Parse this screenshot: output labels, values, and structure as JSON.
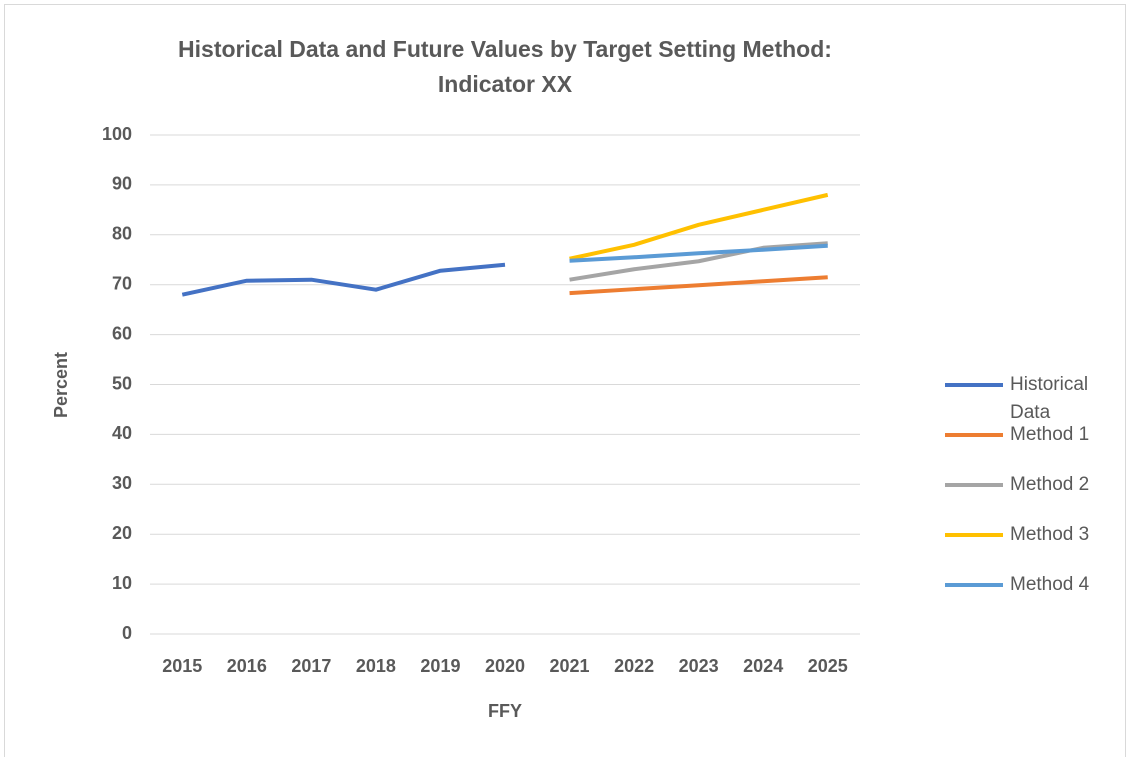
{
  "chart_data": {
    "type": "line",
    "title": "Historical Data and Future Values by Target Setting Method: Indicator XX",
    "x_label": "FFY",
    "y_label": "Percent",
    "categories": [
      "2015",
      "2016",
      "2017",
      "2018",
      "2019",
      "2020",
      "2021",
      "2022",
      "2023",
      "2024",
      "2025"
    ],
    "series": [
      {
        "name": "Historical Data",
        "color": "#4472c4",
        "values": [
          68,
          70.8,
          71,
          69,
          72.8,
          74,
          null,
          null,
          null,
          null,
          null
        ]
      },
      {
        "name": "Method 1",
        "color": "#ed7d31",
        "values": [
          null,
          null,
          null,
          null,
          null,
          null,
          68.3,
          69.1,
          69.9,
          70.7,
          71.5
        ]
      },
      {
        "name": "Method 2",
        "color": "#a5a5a5",
        "values": [
          null,
          null,
          null,
          null,
          null,
          null,
          71,
          73.1,
          74.7,
          77.4,
          78.3
        ]
      },
      {
        "name": "Method 3",
        "color": "#ffc000",
        "values": [
          null,
          null,
          null,
          null,
          null,
          null,
          75.2,
          78,
          82,
          85,
          88
        ]
      },
      {
        "name": "Method 4",
        "color": "#5b9bd5",
        "values": [
          null,
          null,
          null,
          null,
          null,
          null,
          74.8,
          75.5,
          76.3,
          77,
          77.8
        ]
      }
    ],
    "ylim": [
      0,
      100
    ],
    "yticks": [
      0,
      10,
      20,
      30,
      40,
      50,
      60,
      70,
      80,
      90,
      100
    ],
    "grid": true,
    "legend": "right"
  }
}
